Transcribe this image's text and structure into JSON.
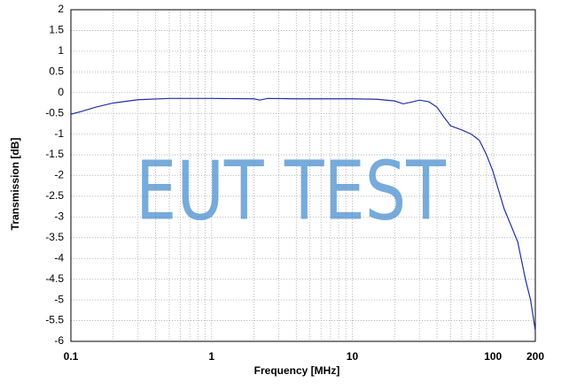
{
  "chart_data": {
    "type": "line",
    "xlabel": "Frequency [MHz]",
    "ylabel": "Transmission [dB]",
    "watermark": "EUT TEST",
    "x": [
      0.1,
      0.12,
      0.15,
      0.2,
      0.3,
      0.5,
      1,
      2,
      2.2,
      2.5,
      4,
      10,
      15,
      20,
      23,
      27,
      30,
      35,
      40,
      45,
      50,
      60,
      70,
      80,
      90,
      100,
      120,
      150,
      170,
      185,
      195,
      200
    ],
    "series": [
      {
        "color": "#1f2fa8",
        "values": [
          -0.52,
          -0.45,
          -0.35,
          -0.25,
          -0.17,
          -0.14,
          -0.14,
          -0.15,
          -0.18,
          -0.14,
          -0.15,
          -0.15,
          -0.16,
          -0.2,
          -0.27,
          -0.22,
          -0.18,
          -0.22,
          -0.35,
          -0.6,
          -0.8,
          -0.9,
          -1.0,
          -1.15,
          -1.5,
          -1.9,
          -2.8,
          -3.6,
          -4.5,
          -5.0,
          -5.5,
          -5.75
        ]
      }
    ],
    "xlog": true,
    "xlim": [
      0.1,
      200
    ],
    "xticks": [
      0.1,
      1,
      10,
      100,
      200
    ],
    "ylim": [
      -6,
      2
    ],
    "yticks": [
      2,
      1.5,
      1,
      0.5,
      0,
      -0.5,
      -1,
      -1.5,
      -2,
      -2.5,
      -3,
      -3.5,
      -4,
      -4.5,
      -5,
      -5.5,
      -6
    ],
    "grid": true
  }
}
